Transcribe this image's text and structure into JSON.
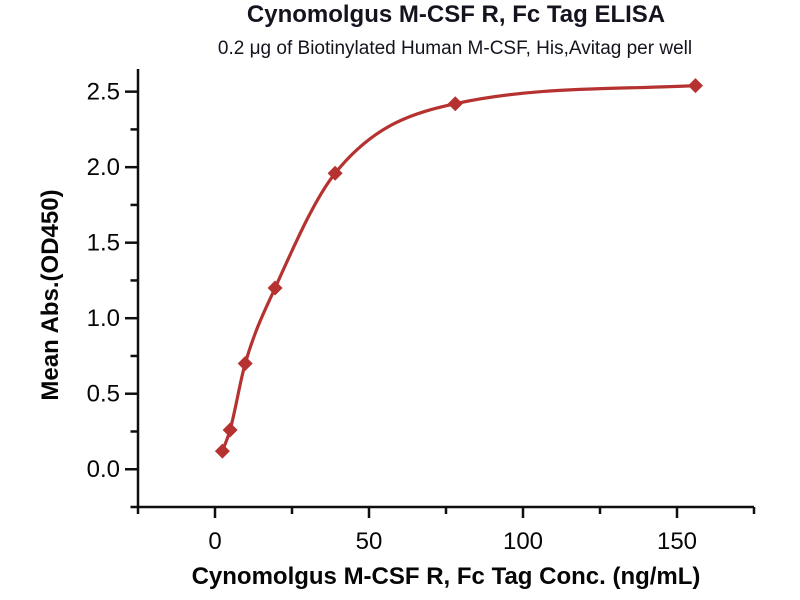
{
  "chart_data": {
    "type": "scatter",
    "title": "Cynomolgus M-CSF R, Fc Tag ELISA",
    "subtitle": "0.2 μg of Biotinylated Human M-CSF, His,Avitag per well",
    "xlabel": "Cynomolgus M-CSF R, Fc Tag Conc. (ng/mL)",
    "ylabel": "Mean Abs.(OD450)",
    "x": [
      2.4,
      4.9,
      9.8,
      19.5,
      39,
      78,
      156
    ],
    "y": [
      0.12,
      0.26,
      0.7,
      1.2,
      1.96,
      2.42,
      2.54
    ],
    "xlim": [
      -25,
      175
    ],
    "ylim": [
      -0.25,
      2.65
    ],
    "x_major_ticks": [
      0,
      50,
      100,
      150
    ],
    "x_minor_ticks": [
      -25,
      25,
      75,
      125,
      175
    ],
    "y_major_ticks": [
      0.0,
      0.5,
      1.0,
      1.5,
      2.0,
      2.5
    ],
    "y_minor_ticks": [
      -0.25,
      0.25,
      0.75,
      1.25,
      1.75,
      2.25
    ],
    "y_tick_decimals": 1,
    "marker": "diamond",
    "curve": "smooth-fit-through-points",
    "grid": false,
    "legend": false,
    "colors": {
      "series": "#b53231",
      "axis": "#0f0f0f",
      "tick_text": "#060606",
      "title_text": "#14141f"
    }
  }
}
